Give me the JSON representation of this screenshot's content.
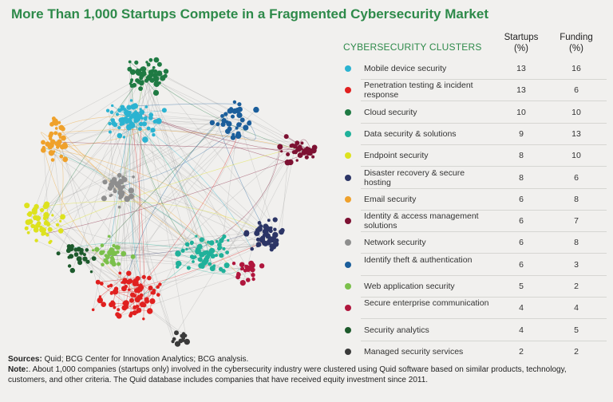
{
  "title": "More Than 1,000 Startups Compete in a Fragmented Cybersecurity Market",
  "table": {
    "cluster_header": "CYBERSECURITY CLUSTERS",
    "startups_header": "Startups",
    "funding_header": "Funding",
    "unit": "(%)",
    "rows": [
      {
        "name": "Mobile device security",
        "startups": "13",
        "funding": "16",
        "color": "#2bb3d1"
      },
      {
        "name": "Penetration testing & incident response",
        "startups": "13",
        "funding": "6",
        "color": "#e0201f"
      },
      {
        "name": "Cloud security",
        "startups": "10",
        "funding": "10",
        "color": "#1f7a43"
      },
      {
        "name": "Data security & solutions",
        "startups": "9",
        "funding": "13",
        "color": "#20b19a"
      },
      {
        "name": "Endpoint security",
        "startups": "8",
        "funding": "10",
        "color": "#dde21e"
      },
      {
        "name": "Disaster recovery & secure hosting",
        "startups": "8",
        "funding": "6",
        "color": "#2c3566"
      },
      {
        "name": "Email security",
        "startups": "6",
        "funding": "8",
        "color": "#efa12b"
      },
      {
        "name": "Identity & access management solutions",
        "startups": "6",
        "funding": "7",
        "color": "#7d1132"
      },
      {
        "name": "Network security",
        "startups": "6",
        "funding": "8",
        "color": "#8e8e8e"
      },
      {
        "name": "Identify theft & authentication",
        "startups": "6",
        "funding": "3",
        "color": "#1b5e9b"
      },
      {
        "name": "Web application security",
        "startups": "5",
        "funding": "2",
        "color": "#7bc04b"
      },
      {
        "name": "Secure enterprise communication",
        "startups": "4",
        "funding": "4",
        "color": "#b0163d"
      },
      {
        "name": "Security analytics",
        "startups": "4",
        "funding": "5",
        "color": "#1d5a2c"
      },
      {
        "name": "Managed security services",
        "startups": "2",
        "funding": "2",
        "color": "#3a3a3a"
      }
    ]
  },
  "footnote": {
    "sources_label": "Sources:",
    "sources_text": "Quid; BCG Center for Innovation Analytics; BCG analysis.",
    "note_label": "Note:",
    "note_text": ". About 1,000 companies (startups only) involved in the cybersecurity industry were clustered using Quid software based on similar products, technology, customers, and other criteria. The Quid database includes companies that have received equity investment since 2011."
  }
}
